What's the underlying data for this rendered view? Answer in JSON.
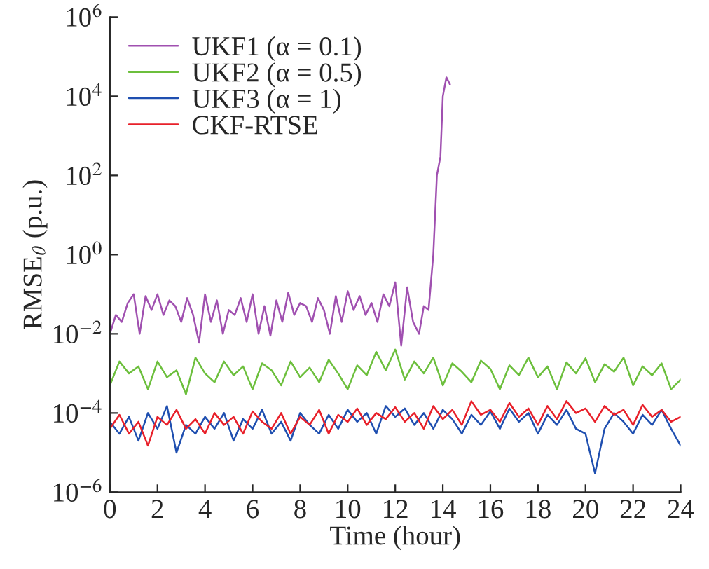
{
  "chart_data": {
    "type": "line",
    "xlabel": "Time (hour)",
    "ylabel": "RMSE$_{θ}$ (p.u.)",
    "log": "y",
    "grid": false,
    "legend": "top left",
    "line_style": "solid",
    "marker": "none",
    "xlim": [
      0,
      24
    ],
    "xticks": [
      0,
      2,
      4,
      6,
      8,
      10,
      12,
      14,
      16,
      18,
      20,
      22,
      24
    ],
    "ylim": [
      1e-06,
      1000000.0
    ],
    "yticks": [
      {
        "value": 1e-06,
        "label": "10$^{−6}$"
      },
      {
        "value": 0.0001,
        "label": "10$^{−4}$"
      },
      {
        "value": 0.01,
        "label": "10$^{−2}$"
      },
      {
        "value": 1,
        "label": "10$^{0}$"
      },
      {
        "value": 100,
        "label": "10$^{2}$"
      },
      {
        "value": 10000,
        "label": "10$^{4}$"
      },
      {
        "value": 1000000,
        "label": "10$^{6}$"
      }
    ],
    "x": [
      0,
      0.4,
      0.8,
      1.2,
      1.6,
      2,
      2.4,
      2.8,
      3.2,
      3.6,
      4,
      4.4,
      4.8,
      5.2,
      5.6,
      6,
      6.4,
      6.8,
      7.2,
      7.6,
      8,
      8.4,
      8.8,
      9.2,
      9.6,
      10,
      10.4,
      10.8,
      11.2,
      11.6,
      12,
      12.4,
      12.8,
      13.2,
      13.6,
      14,
      14.4,
      14.8,
      15.2,
      15.6,
      16,
      16.4,
      16.8,
      17.2,
      17.6,
      18,
      18.4,
      18.8,
      19.2,
      19.6,
      20,
      20.4,
      20.8,
      21.2,
      21.6,
      22,
      22.4,
      22.8,
      23.2,
      23.6,
      24
    ],
    "series": [
      {
        "name": "UKF1 (α = 0.1)",
        "color": "#a050b0",
        "x": [
          0,
          0.25,
          0.5,
          0.75,
          1,
          1.25,
          1.5,
          1.75,
          2,
          2.25,
          2.5,
          2.75,
          3,
          3.25,
          3.5,
          3.75,
          4,
          4.25,
          4.5,
          4.75,
          5,
          5.25,
          5.5,
          5.75,
          6,
          6.25,
          6.5,
          6.75,
          7,
          7.25,
          7.5,
          7.75,
          8,
          8.25,
          8.5,
          8.75,
          9,
          9.25,
          9.5,
          9.75,
          10,
          10.25,
          10.5,
          10.75,
          11,
          11.25,
          11.5,
          11.75,
          12,
          12.25,
          12.5,
          12.75,
          13.0,
          13.2,
          13.4,
          13.6,
          13.75,
          13.9,
          14.0,
          14.15,
          14.3
        ],
        "values": [
          0.01,
          0.03,
          0.02,
          0.06,
          0.1,
          0.01,
          0.09,
          0.04,
          0.1,
          0.03,
          0.07,
          0.05,
          0.02,
          0.08,
          0.03,
          0.006,
          0.1,
          0.02,
          0.07,
          0.01,
          0.04,
          0.03,
          0.08,
          0.02,
          0.1,
          0.01,
          0.05,
          0.009,
          0.07,
          0.02,
          0.11,
          0.03,
          0.06,
          0.05,
          0.02,
          0.08,
          0.04,
          0.01,
          0.09,
          0.02,
          0.12,
          0.04,
          0.09,
          0.03,
          0.06,
          0.02,
          0.1,
          0.05,
          0.2,
          0.005,
          0.15,
          0.02,
          0.01,
          0.05,
          0.04,
          1,
          100,
          300,
          10000,
          30000,
          20000
        ]
      },
      {
        "name": "UKF2 (α = 0.5)",
        "color": "#6cbf3c",
        "values": [
          0.0005,
          0.002,
          0.001,
          0.0015,
          0.0004,
          0.002,
          0.0008,
          0.0012,
          0.0003,
          0.0025,
          0.001,
          0.0006,
          0.002,
          0.0009,
          0.0015,
          0.0004,
          0.0018,
          0.0012,
          0.0005,
          0.002,
          0.0008,
          0.0014,
          0.0006,
          0.0022,
          0.001,
          0.0004,
          0.0016,
          0.0009,
          0.0035,
          0.0012,
          0.004,
          0.0007,
          0.002,
          0.001,
          0.0025,
          0.0005,
          0.0018,
          0.0011,
          0.0006,
          0.0021,
          0.0013,
          0.0004,
          0.0016,
          0.0009,
          0.0025,
          0.0008,
          0.0015,
          0.0004,
          0.0019,
          0.001,
          0.0024,
          0.0006,
          0.0017,
          0.0011,
          0.0025,
          0.0005,
          0.0015,
          0.0009,
          0.0018,
          0.0004,
          0.0007
        ]
      },
      {
        "name": "UKF3 (α = 1)",
        "color": "#1f4fb0",
        "values": [
          6e-05,
          3e-05,
          8e-05,
          2e-05,
          0.0001,
          4e-05,
          0.00015,
          1e-05,
          5e-05,
          3e-05,
          8e-05,
          4e-05,
          0.0001,
          2e-05,
          7e-05,
          4e-05,
          0.00012,
          3e-05,
          6e-05,
          2e-05,
          0.0001,
          5e-05,
          3e-05,
          9e-05,
          4e-05,
          0.00012,
          6e-05,
          0.0001,
          3e-05,
          0.00015,
          8e-05,
          0.00013,
          5e-05,
          0.0001,
          4e-05,
          0.00012,
          7e-05,
          3e-05,
          9e-05,
          5e-05,
          0.00011,
          4e-05,
          0.00013,
          6e-05,
          0.0001,
          3e-05,
          9e-05,
          5e-05,
          0.00012,
          4e-05,
          3e-05,
          3e-06,
          4e-05,
          0.0001,
          6e-05,
          3e-05,
          9e-05,
          5e-05,
          0.00012,
          4e-05,
          1.5e-05
        ]
      },
      {
        "name": "CKF-RTSE",
        "color": "#e8202a",
        "values": [
          4e-05,
          9e-05,
          3e-05,
          6e-05,
          1.5e-05,
          8e-05,
          5e-05,
          0.00012,
          4e-05,
          7e-05,
          3e-05,
          0.0001,
          5e-05,
          8e-05,
          3e-05,
          0.00011,
          6e-05,
          4e-05,
          0.0001,
          3e-05,
          8e-05,
          5e-05,
          0.00012,
          3e-05,
          9e-05,
          6e-05,
          0.00013,
          5e-05,
          0.0001,
          7e-05,
          0.00014,
          6e-05,
          0.0001,
          4e-05,
          0.00015,
          7e-05,
          0.00012,
          5e-05,
          0.0002,
          9e-05,
          0.00012,
          6e-05,
          0.00018,
          8e-05,
          0.00013,
          5e-05,
          0.00015,
          7e-05,
          0.0002,
          0.0001,
          0.00013,
          6e-05,
          0.00015,
          9e-05,
          0.00012,
          5e-05,
          0.00016,
          8e-05,
          0.00012,
          6e-05,
          8e-05
        ]
      }
    ]
  }
}
